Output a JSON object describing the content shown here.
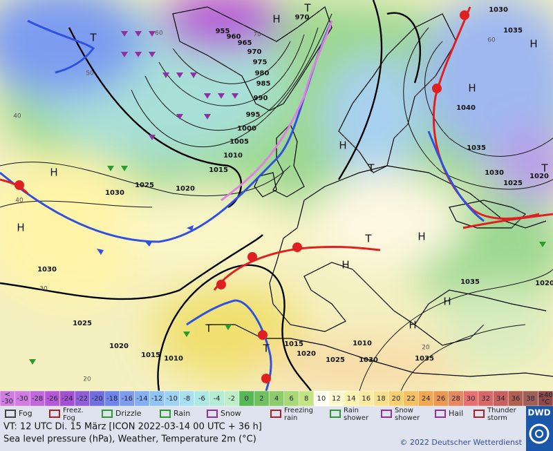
{
  "map": {
    "pressure_labels": [
      "955",
      "960",
      "965",
      "970",
      "975",
      "980",
      "985",
      "990",
      "995",
      "1000",
      "1005",
      "1010",
      "1015",
      "1020",
      "1025",
      "1030",
      "1030",
      "1025",
      "1020",
      "1015",
      "1010",
      "1015",
      "1020",
      "1010",
      "1025",
      "1030",
      "1035",
      "1035",
      "1030",
      "1025",
      "1020",
      "1035",
      "1040",
      "1035",
      "1030",
      "1020",
      "970"
    ],
    "temperature_labels": [
      "60",
      "60",
      "40",
      "50",
      "40",
      "30",
      "20",
      "20",
      "70"
    ],
    "systems": [
      "H",
      "H",
      "H",
      "H",
      "H",
      "H",
      "H",
      "H",
      "H",
      "H",
      "T",
      "T",
      "T",
      "T",
      "T",
      "T",
      "T"
    ]
  },
  "legend": {
    "scale_below": {
      "symbol": "<",
      "value": -30
    },
    "scale_values": [
      -30,
      -28,
      -26,
      -24,
      -22,
      -20,
      -18,
      -16,
      -14,
      -12,
      -10,
      -8,
      -6,
      -4,
      -2,
      0,
      2,
      4,
      6,
      8,
      10,
      12,
      14,
      16,
      18,
      20,
      22,
      24,
      26,
      28,
      30,
      32,
      34,
      36,
      38
    ],
    "scale_colors": [
      "#d07ce0",
      "#c068dc",
      "#b45ad8",
      "#a24fd4",
      "#8f5fd8",
      "#6f6fe0",
      "#6f86e8",
      "#7d9cf0",
      "#86b0f4",
      "#8fc4f4",
      "#9fd3f4",
      "#a8e0f0",
      "#aee8e4",
      "#b4ecd6",
      "#bef0c8",
      "#58b858",
      "#70c060",
      "#8ccc6c",
      "#a8d878",
      "#c4e484",
      "#fffef0",
      "#fffad0",
      "#fff4b0",
      "#fde9a0",
      "#fbe08a",
      "#f8d070",
      "#f4c060",
      "#f0a850",
      "#ec9850",
      "#e88860",
      "#e87070",
      "#d86868",
      "#c86060",
      "#b06050",
      "#a06058"
    ],
    "scale_above": {
      "symbol": "≥40",
      "unit": "°C"
    },
    "symbols": [
      "Fog",
      "Freez. Fog",
      "Drizzle",
      "Rain",
      "Snow",
      "Freezing rain",
      "Rain shower",
      "Snow shower",
      "Hail",
      "Thunder storm"
    ]
  },
  "footer": {
    "valid_time": "VT: 12 UTC Di.  15 März [ICON 2022-03-14  00 UTC + 36 h]",
    "description": "Sea level pressure (hPa), Weather, Temperature 2m (°C)",
    "copyright": "© 2022 Deutscher Wetterdienst",
    "logo": "DWD"
  }
}
